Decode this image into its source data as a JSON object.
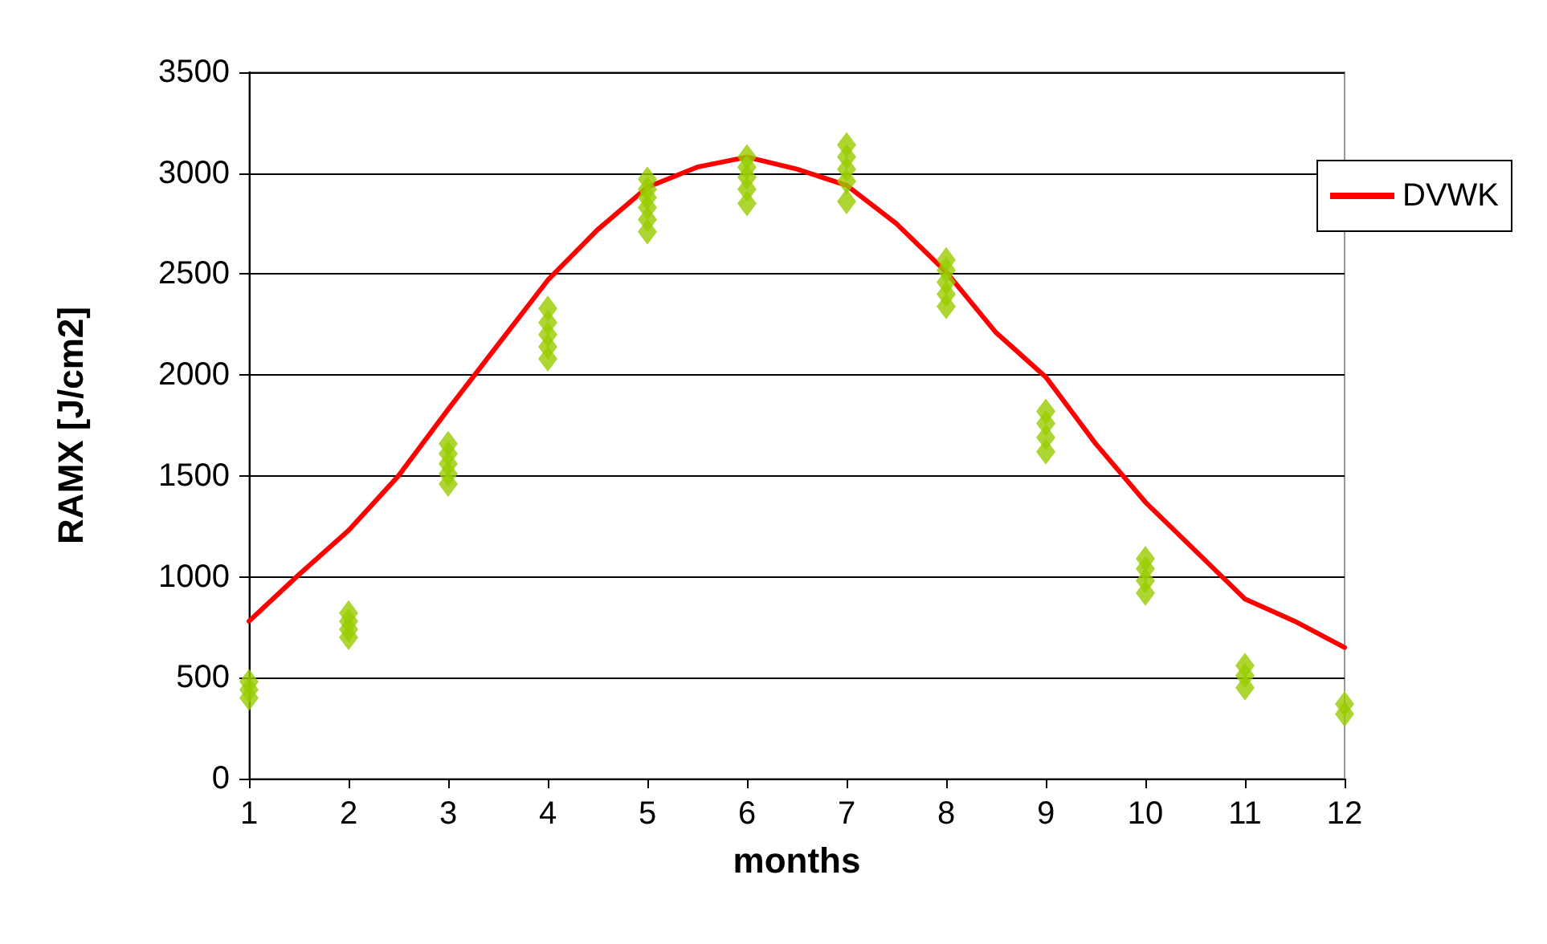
{
  "chart_data": {
    "type": "line",
    "xlabel": "months",
    "ylabel": "RAMX [J/cm2]",
    "xlim": [
      1,
      12
    ],
    "xticks": [
      1,
      2,
      3,
      4,
      5,
      6,
      7,
      8,
      9,
      10,
      11,
      12
    ],
    "ylim": [
      0,
      3500
    ],
    "yticks": [
      0,
      500,
      1000,
      1500,
      2000,
      2500,
      3000,
      3500
    ],
    "grid": "y",
    "legend": "right",
    "series": [
      {
        "name": "DVWK",
        "color": "#ff0000",
        "marker": "none",
        "line_style": "solid",
        "x": [
          1,
          1.5,
          2,
          2.5,
          3,
          3.5,
          4,
          4.5,
          5,
          5.5,
          6,
          6.5,
          7,
          7.5,
          8,
          8.5,
          9,
          9.5,
          10,
          10.5,
          11,
          11.5,
          12
        ],
        "values": [
          780,
          1010,
          1230,
          1500,
          1830,
          2150,
          2470,
          2720,
          2930,
          3030,
          3080,
          3020,
          2940,
          2750,
          2510,
          2210,
          1990,
          1660,
          1370,
          1130,
          890,
          780,
          650
        ]
      },
      {
        "type": "scatter",
        "color": "#99cc00",
        "marker": "diamond",
        "x": [
          1,
          1,
          1,
          2,
          2,
          2,
          2,
          3,
          3,
          3,
          3,
          3,
          4,
          4,
          4,
          4,
          4,
          5,
          5,
          5,
          5,
          5,
          5,
          6,
          6,
          6,
          6,
          6,
          7,
          7,
          7,
          7,
          7,
          8,
          8,
          8,
          8,
          8,
          9,
          9,
          9,
          9,
          10,
          10,
          10,
          10,
          11,
          11,
          11,
          12,
          12
        ],
        "values": [
          400,
          440,
          480,
          700,
          740,
          780,
          820,
          1460,
          1510,
          1560,
          1610,
          1660,
          2080,
          2140,
          2200,
          2260,
          2330,
          2710,
          2770,
          2830,
          2880,
          2920,
          2970,
          2850,
          2920,
          2980,
          3030,
          3080,
          2860,
          2960,
          3020,
          3080,
          3140,
          2340,
          2400,
          2460,
          2520,
          2570,
          1620,
          1690,
          1760,
          1820,
          920,
          980,
          1040,
          1090,
          450,
          510,
          560,
          320,
          370
        ]
      }
    ]
  }
}
